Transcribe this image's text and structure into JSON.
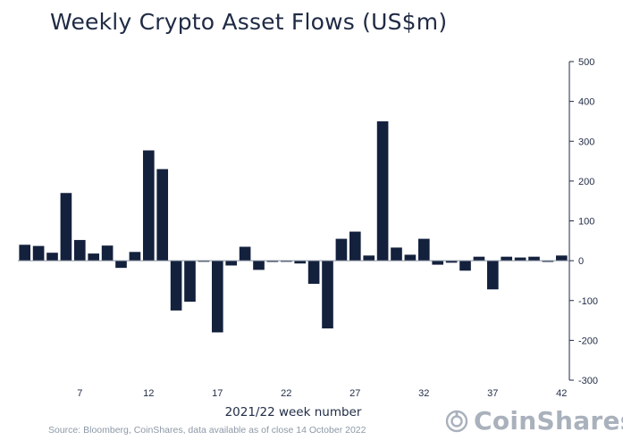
{
  "chart_data": {
    "type": "bar",
    "title": "Weekly Crypto Asset Flows (US$m)",
    "xlabel": "2021/22 week number",
    "ylabel": "",
    "ylim": [
      -300,
      500
    ],
    "yticks": [
      500,
      400,
      300,
      200,
      100,
      0,
      -100,
      -200,
      -300
    ],
    "x_ticks": [
      7,
      12,
      17,
      22,
      27,
      32,
      37,
      42
    ],
    "x": [
      3,
      4,
      5,
      6,
      7,
      8,
      9,
      10,
      11,
      12,
      13,
      14,
      15,
      16,
      17,
      18,
      19,
      20,
      21,
      22,
      23,
      24,
      25,
      26,
      27,
      28,
      29,
      30,
      31,
      32,
      33,
      34,
      35,
      36,
      37,
      38,
      39,
      40,
      41,
      42
    ],
    "values": [
      40,
      37,
      20,
      170,
      52,
      18,
      38,
      -18,
      22,
      277,
      230,
      -125,
      -103,
      -2,
      -180,
      -12,
      35,
      -23,
      -3,
      -2,
      -7,
      -58,
      -170,
      55,
      73,
      13,
      350,
      33,
      15,
      55,
      -10,
      -5,
      -25,
      10,
      -72,
      10,
      8,
      10,
      -3,
      13
    ],
    "bar_color": "#14213d",
    "grid": false,
    "axis_side": "right",
    "source": "Source: Bloomberg, CoinShares, data available as of close 14 October 2022"
  },
  "branding": {
    "logo_text": "CoinShares",
    "logo_icon": "coinshares-logo-icon",
    "logo_color": "#a9b1bc"
  }
}
